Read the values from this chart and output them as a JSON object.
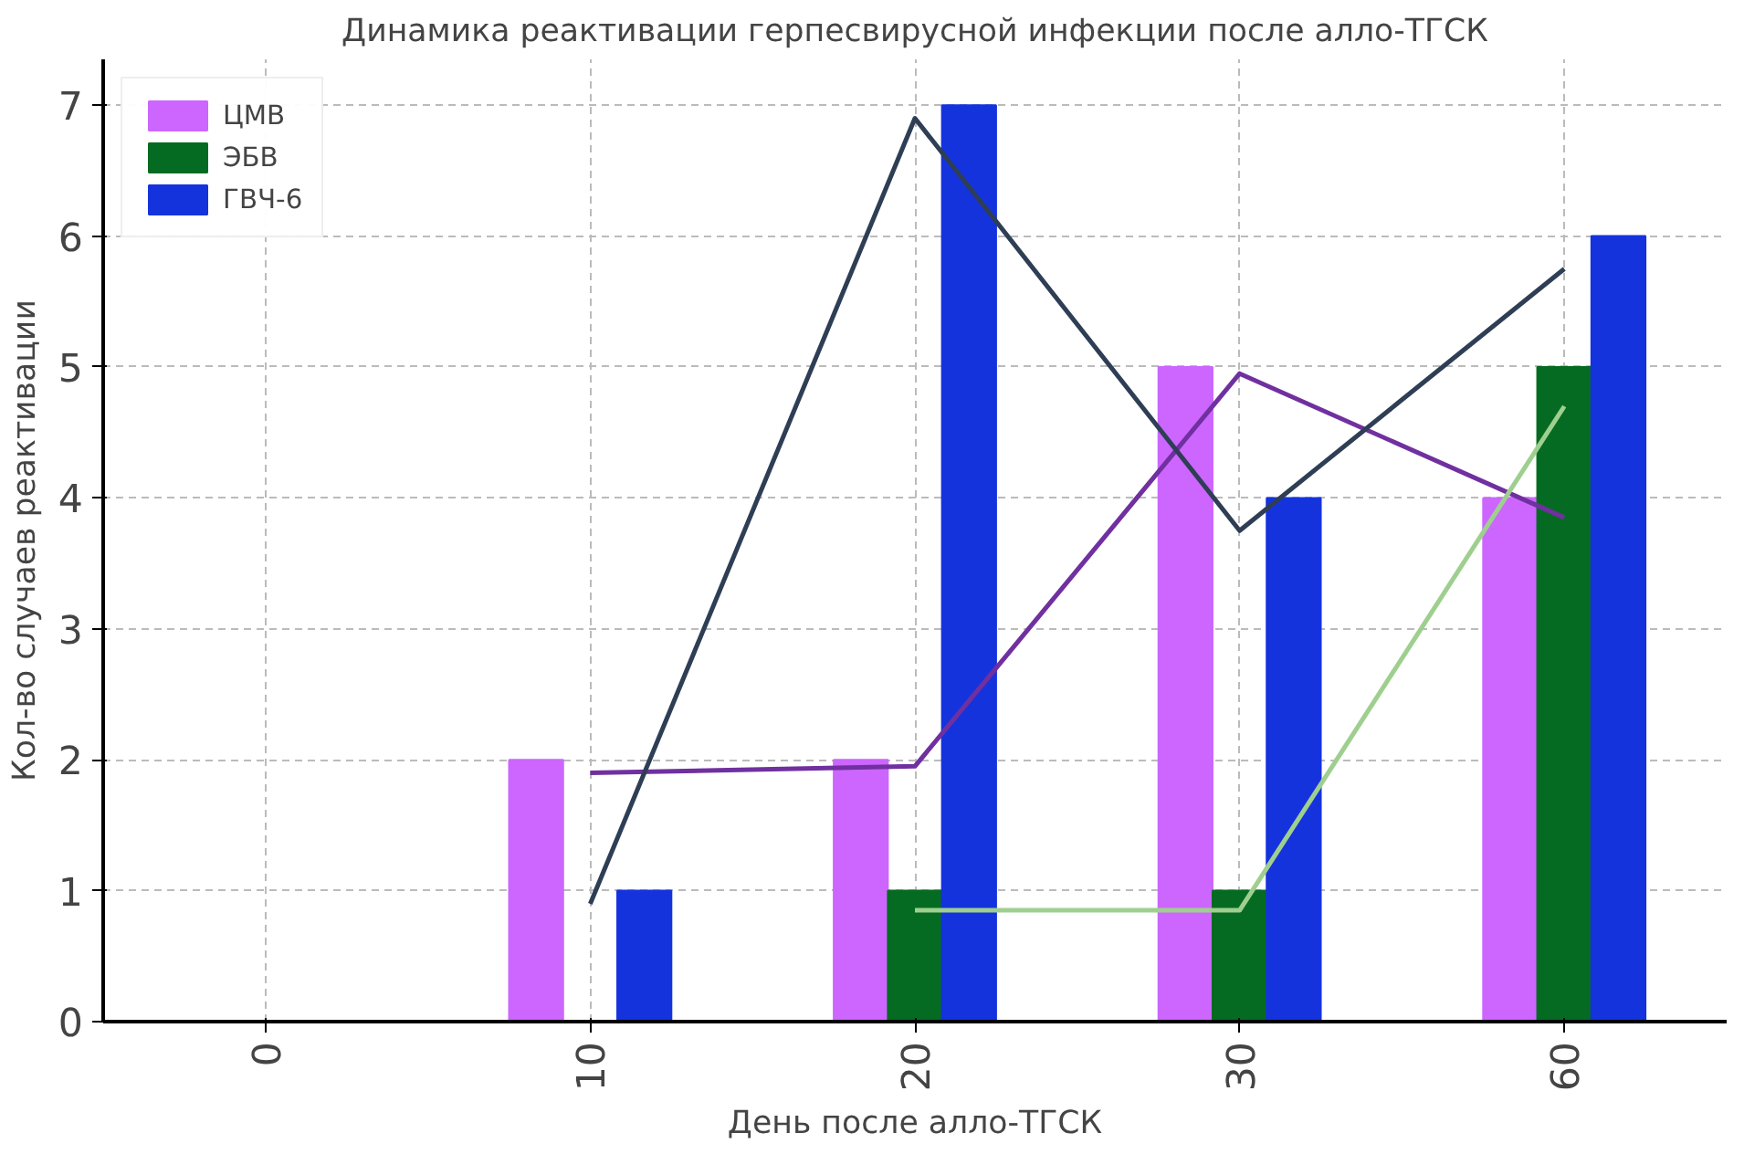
{
  "chart_data": {
    "type": "bar",
    "title": "Динамика реактивации герпесвирусной инфекции после алло-ТГСК",
    "xlabel": "День после алло-ТГСК",
    "ylabel": "Кол-во случаев реактивации",
    "categories": [
      "0",
      "10",
      "20",
      "30",
      "60"
    ],
    "series": [
      {
        "name": "ЦМВ",
        "color": "#cc66ff",
        "values": [
          0,
          2,
          2,
          5,
          4
        ]
      },
      {
        "name": "ЭБВ",
        "color": "#066b22",
        "values": [
          0,
          0,
          1,
          1,
          5
        ]
      },
      {
        "name": "ГВЧ-6",
        "color": "#1533dd",
        "values": [
          0,
          1,
          7,
          4,
          6
        ]
      },
      {
        "type": "line",
        "color": "#7030a0",
        "values": [
          null,
          1.9,
          1.95,
          4.95,
          3.85
        ]
      },
      {
        "type": "line",
        "color": "#2e3e55",
        "values": [
          null,
          0.9,
          6.9,
          3.75,
          5.75
        ]
      },
      {
        "type": "line",
        "color": "#9fcf8f",
        "values": [
          null,
          null,
          0.85,
          0.85,
          4.7
        ]
      }
    ],
    "ylim": [
      0,
      7.35
    ],
    "yticks": [
      0,
      1,
      2,
      3,
      4,
      5,
      6,
      7
    ],
    "grid": true,
    "legend": "top left"
  }
}
